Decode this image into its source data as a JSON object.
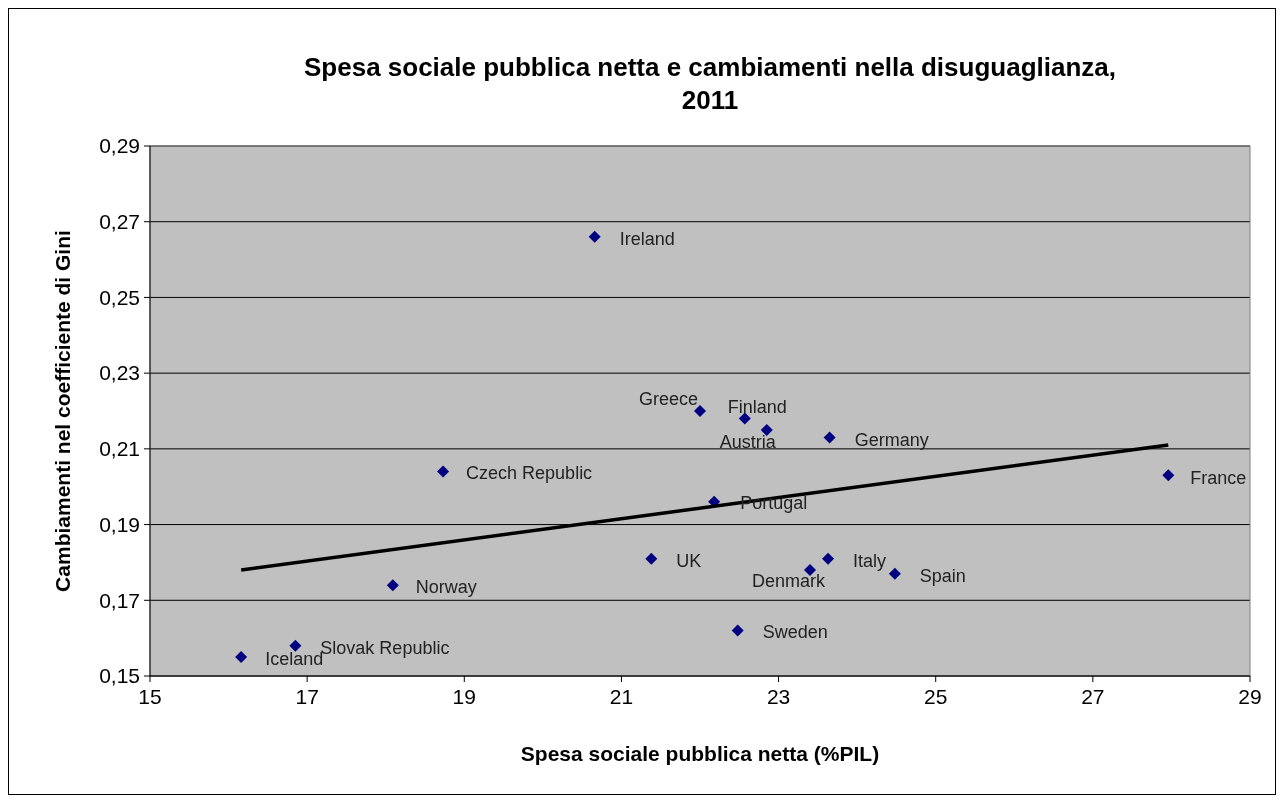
{
  "chart_data": {
    "type": "scatter",
    "title": "Spesa sociale pubblica netta e cambiamenti nella disuguaglianza,\n2011",
    "xlabel": "Spesa sociale pubblica netta (%PIL)",
    "ylabel": "Cambiamenti nel coefficiente di Gini",
    "xlim": [
      15,
      29
    ],
    "xticks": [
      15,
      17,
      19,
      21,
      23,
      25,
      27,
      29
    ],
    "ylim": [
      0.15,
      0.29
    ],
    "yticks": [
      {
        "value": 0.15,
        "label": "0,15"
      },
      {
        "value": 0.17,
        "label": "0,17"
      },
      {
        "value": 0.19,
        "label": "0,19"
      },
      {
        "value": 0.21,
        "label": "0,21"
      },
      {
        "value": 0.23,
        "label": "0,23"
      },
      {
        "value": 0.25,
        "label": "0,25"
      },
      {
        "value": 0.27,
        "label": "0,27"
      },
      {
        "value": 0.29,
        "label": "0,29"
      }
    ],
    "grid": "y",
    "marker": "diamond",
    "series": [
      {
        "color": "#000080",
        "x": [
          20.66,
          22.0,
          22.57,
          22.85,
          23.65,
          18.73,
          27.96,
          22.18,
          21.38,
          23.63,
          23.4,
          24.48,
          18.09,
          22.48,
          16.85,
          16.16
        ],
        "values": [
          0.266,
          0.22,
          0.218,
          0.215,
          0.213,
          0.204,
          0.203,
          0.196,
          0.181,
          0.181,
          0.178,
          0.177,
          0.174,
          0.162,
          0.158,
          0.155
        ]
      },
      {
        "type": "line",
        "color": "#000000",
        "x": [
          16.16,
          27.96
        ],
        "values": [
          0.178,
          0.211
        ],
        "marker": "none",
        "line_style": "solid"
      }
    ],
    "annotations": [
      {
        "text": "Ireland",
        "x": 20.66,
        "y": 0.266
      },
      {
        "text": "Greece",
        "x": 22.0,
        "y": 0.22
      },
      {
        "text": "Finland",
        "x": 22.57,
        "y": 0.218
      },
      {
        "text": "Austria",
        "x": 22.85,
        "y": 0.215
      },
      {
        "text": "Germany",
        "x": 23.65,
        "y": 0.213
      },
      {
        "text": "Czech Republic",
        "x": 18.73,
        "y": 0.204
      },
      {
        "text": "France",
        "x": 27.96,
        "y": 0.203
      },
      {
        "text": "Portugal",
        "x": 22.18,
        "y": 0.196
      },
      {
        "text": "UK",
        "x": 21.38,
        "y": 0.181
      },
      {
        "text": "Italy",
        "x": 23.63,
        "y": 0.181
      },
      {
        "text": "Denmark",
        "x": 23.4,
        "y": 0.178
      },
      {
        "text": "Spain",
        "x": 24.48,
        "y": 0.177
      },
      {
        "text": "Norway",
        "x": 18.09,
        "y": 0.174
      },
      {
        "text": "Sweden",
        "x": 22.48,
        "y": 0.162
      },
      {
        "text": "Slovak  Republic",
        "x": 16.85,
        "y": 0.158
      },
      {
        "text": "Iceland",
        "x": 16.16,
        "y": 0.155
      }
    ]
  }
}
